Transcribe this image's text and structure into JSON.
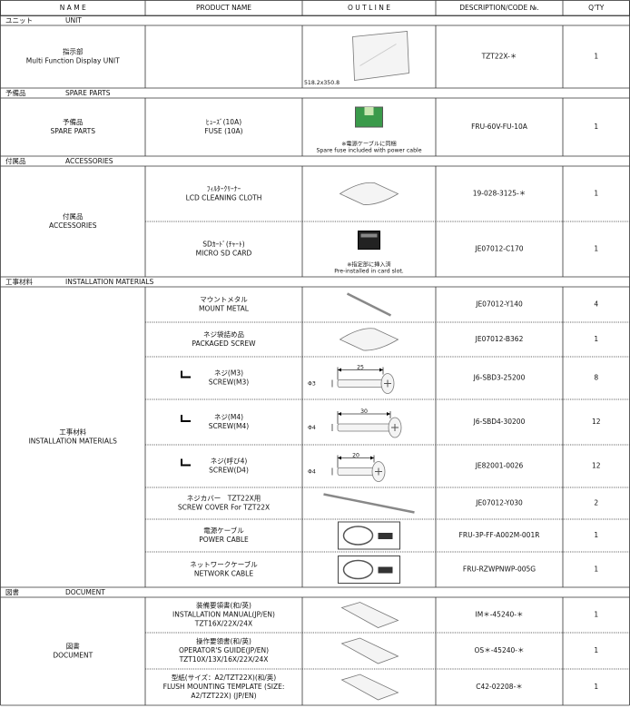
{
  "table": {
    "headers": [
      "N A M E",
      "PRODUCT NAME",
      "O U T L I N E",
      "DESCRIPTION/CODE №.",
      "Q'TY"
    ],
    "sections": [
      {
        "title_jp": "ユニット",
        "title_en": "UNIT",
        "name": [
          "指示部",
          "Multi Function Display UNIT"
        ],
        "items": [
          {
            "product": [],
            "dims": [
              "518.2x350.8"
            ],
            "code": "TZT22X-＊",
            "qty": 1
          }
        ]
      },
      {
        "title_jp": "予備品",
        "title_en": "SPARE PARTS",
        "name": [
          "予備品",
          "SPARE PARTS"
        ],
        "items": [
          {
            "product": [
              "ﾋｭｰｽﾞ(10A)",
              "FUSE (10A)"
            ],
            "note": [
              "※電源ケーブルに同梱",
              "Spare fuse included with power cable"
            ],
            "code": "FRU-60V-FU-10A",
            "qty": 1
          }
        ]
      },
      {
        "title_jp": "付属品",
        "title_en": "ACCESSORIES",
        "name": [
          "付属品",
          "ACCESSORIES"
        ],
        "items": [
          {
            "product": [
              "ﾌｨﾙﾀｰｸﾘｰﾅｰ",
              "LCD CLEANING CLOTH"
            ],
            "code": "19-028-3125-＊",
            "qty": 1
          },
          {
            "product": [
              "SDｶｰﾄﾞ(ﾁｬｰﾄ)",
              "MICRO SD CARD"
            ],
            "note": [
              "※指定部に挿入済",
              "Pre-installed in card slot."
            ],
            "code": "JE07012-C170",
            "qty": 1
          }
        ]
      },
      {
        "title_jp": "工事材料",
        "title_en": "INSTALLATION MATERIALS",
        "name": [
          "工事材料",
          "INSTALLATION MATERIALS"
        ],
        "items": [
          {
            "product": [
              "マウントメタル",
              "MOUNT METAL"
            ],
            "code": "JE07012-Y140",
            "qty": 4
          },
          {
            "product": [
              "ネジ袋詰め品",
              "PACKAGED SCREW"
            ],
            "code": "JE07012-B362",
            "qty": 1
          },
          {
            "product": [
              "ネジ(M3)",
              "SCREW(M3)"
            ],
            "dims": [
              "25",
              "Φ3"
            ],
            "code": "J6-SBD3-25200",
            "qty": 8
          },
          {
            "product": [
              "ネジ(M4)",
              "SCREW(M4)"
            ],
            "dims": [
              "30",
              "Φ4"
            ],
            "code": "J6-SBD4-30200",
            "qty": 12
          },
          {
            "product": [
              "ネジ(呼び4)",
              "SCREW(D4)"
            ],
            "dims": [
              "20",
              "Φ4"
            ],
            "code": "JE82001-0026",
            "qty": 12
          },
          {
            "product": [
              "ネジカバー　TZT22X用",
              "SCREW COVER  For TZT22X"
            ],
            "code": "JE07012-Y030",
            "qty": 2
          },
          {
            "product": [
              "電源ケーブル",
              "POWER CABLE"
            ],
            "code": "FRU-3P-FF-A002M-001R",
            "qty": 1
          },
          {
            "product": [
              "ネットワークケーブル",
              "NETWORK CABLE"
            ],
            "code": "FRU-RZWPNWP-005G",
            "qty": 1
          }
        ]
      },
      {
        "title_jp": "図書",
        "title_en": "DOCUMENT",
        "name": [
          "図書",
          "DOCUMENT"
        ],
        "items": [
          {
            "product": [
              "装備要領書(和/英)",
              "INSTALLATION MANUAL(JP/EN)",
              "TZT16X/22X/24X"
            ],
            "code": "IM＊-45240-＊",
            "qty": 1
          },
          {
            "product": [
              "操作要領書(和/英)",
              "OPERATOR'S GUIDE(JP/EN)",
              "TZT10X/13X/16X/22X/24X"
            ],
            "code": "OS＊-45240-＊",
            "qty": 1
          },
          {
            "product": [
              "型紙(サイズ：A2/TZT22X)(和/英)",
              "FLUSH MOUNTING TEMPLATE (SIZE:",
              "A2/TZT22X) (JP/EN)"
            ],
            "code": "C42-02208-＊",
            "qty": 1
          }
        ]
      }
    ]
  }
}
